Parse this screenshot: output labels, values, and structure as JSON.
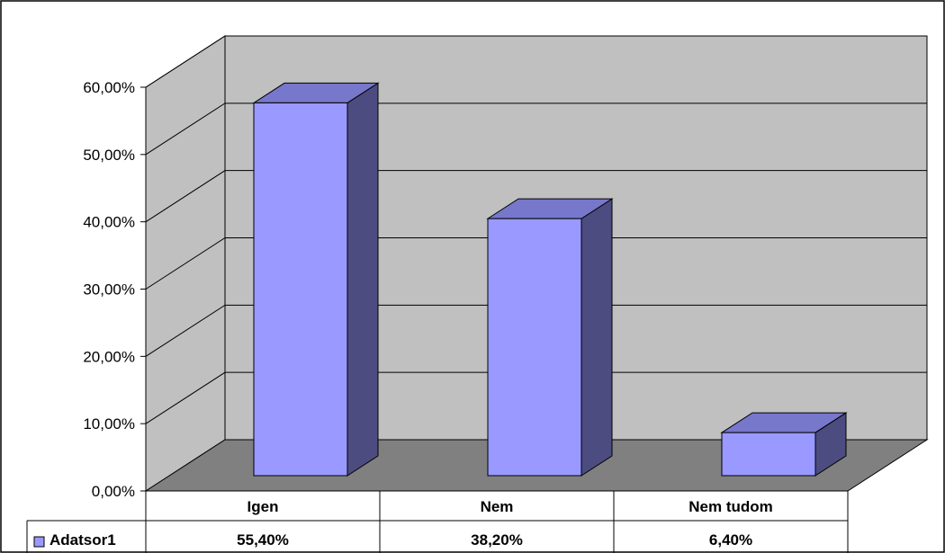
{
  "chart_data": {
    "type": "bar",
    "categories": [
      "Igen",
      "Nem",
      "Nem tudom"
    ],
    "series": [
      {
        "name": "Adatsor1",
        "values": [
          0.554,
          0.382,
          0.064
        ],
        "labels": [
          "55,40%",
          "38,20%",
          "6,40%"
        ]
      }
    ],
    "y_ticks": [
      "0,00%",
      "10,00%",
      "20,00%",
      "30,00%",
      "40,00%",
      "50,00%",
      "60,00%"
    ],
    "ylim": [
      0,
      0.6
    ],
    "grid": true,
    "legend": "data-table-left"
  },
  "colors": {
    "bar_front": "#9999ff",
    "bar_top": "#7777cc",
    "bar_side": "#4c4c80",
    "back_wall": "#c0c0c0",
    "side_wall": "#c0c0c0",
    "floor": "#808080"
  }
}
